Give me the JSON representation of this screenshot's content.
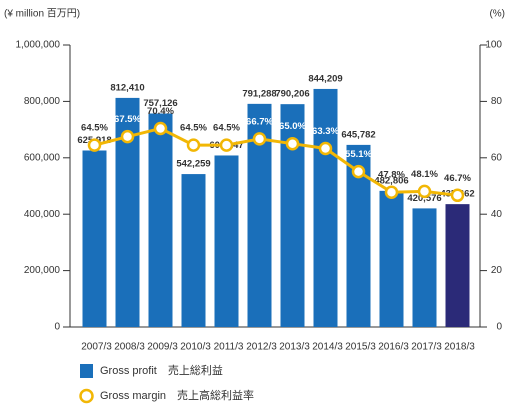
{
  "chart_data": {
    "type": "bar-line",
    "y_label": "(¥ million  百万円)",
    "y2_label": "(%)",
    "categories": [
      "2007/3",
      "2008/3",
      "2009/3",
      "2010/3",
      "2011/3",
      "2012/3",
      "2013/3",
      "2014/3",
      "2015/3",
      "2016/3",
      "2017/3",
      "2018/3"
    ],
    "series": [
      {
        "name": "Gross profit　売上総利益",
        "type": "bar",
        "color": "#1a6fba",
        "colors": [
          "#1a6fba",
          "#1a6fba",
          "#1a6fba",
          "#1a6fba",
          "#1a6fba",
          "#1a6fba",
          "#1a6fba",
          "#1a6fba",
          "#1a6fba",
          "#1a6fba",
          "#1a6fba",
          "#2b2a78"
        ],
        "values": [
          625918,
          812410,
          757126,
          542259,
          608247,
          791288,
          790206,
          844209,
          645782,
          482806,
          420576,
          435662
        ],
        "value_labels": [
          "625,918",
          "812,410",
          "757,126",
          "542,259",
          "608,247",
          "791,288",
          "790,206",
          "844,209",
          "645,782",
          "482,806",
          "420,576",
          "435,662"
        ]
      },
      {
        "name": "Gross margin　売上高総利益率",
        "type": "line",
        "axis": "y2",
        "color": "#f2b705",
        "values": [
          64.5,
          67.5,
          70.4,
          64.5,
          64.5,
          66.7,
          65.0,
          63.3,
          55.1,
          47.8,
          48.1,
          46.7
        ],
        "value_labels": [
          "64.5%",
          "67.5%",
          "70.4%",
          "64.5%",
          "64.5%",
          "66.7%",
          "65.0%",
          "63.3%",
          "55.1%",
          "47.8%",
          "48.1%",
          "46.7%"
        ]
      }
    ],
    "ylim": [
      0,
      1000000
    ],
    "yticks": [
      0,
      {
        "value": 200000,
        "label": "200,000"
      },
      {
        "value": 400000,
        "label": "400,000"
      },
      {
        "value": 600000,
        "label": "600,000"
      },
      {
        "value": 800000,
        "label": "800,000"
      },
      {
        "value": 1000000,
        "label": "1,000,000"
      }
    ],
    "y2lim": [
      0,
      100
    ],
    "y2ticks": [
      0,
      20,
      40,
      60,
      80,
      100
    ]
  }
}
